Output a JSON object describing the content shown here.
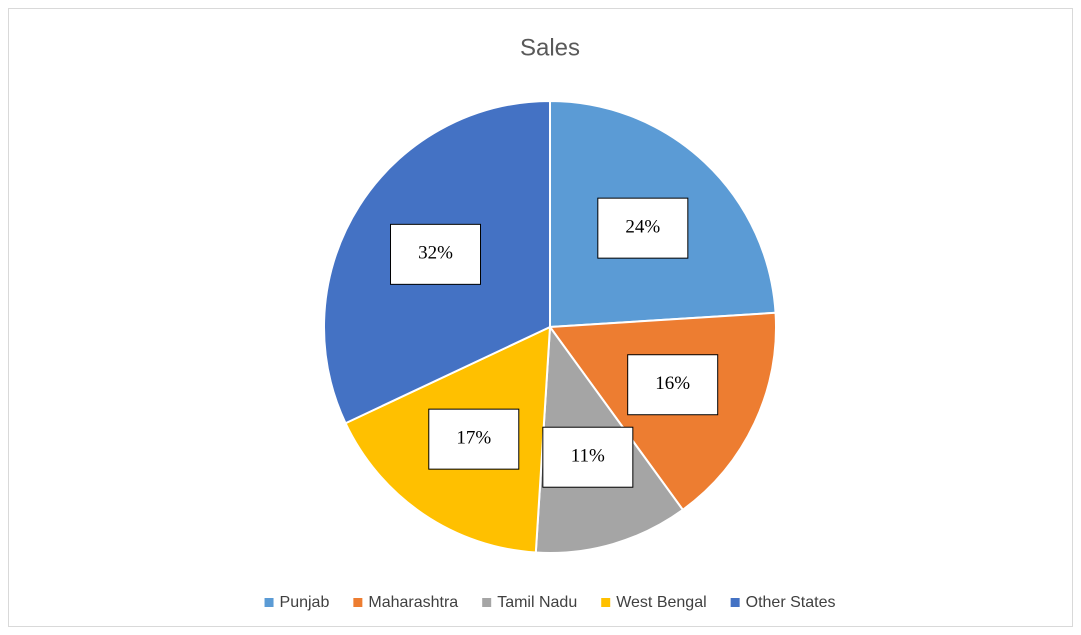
{
  "chart_data": {
    "type": "pie",
    "title": "Sales",
    "categories": [
      "Punjab",
      "Maharashtra",
      "Tamil Nadu",
      "West Bengal",
      "Other States"
    ],
    "values": [
      24,
      16,
      11,
      17,
      32
    ],
    "value_labels": [
      "24%",
      "16%",
      "11%",
      "17%",
      "32%"
    ],
    "colors": [
      "#5b9bd5",
      "#ed7d31",
      "#a5a5a5",
      "#ffc000",
      "#4472c4"
    ],
    "legend": "bottom"
  }
}
